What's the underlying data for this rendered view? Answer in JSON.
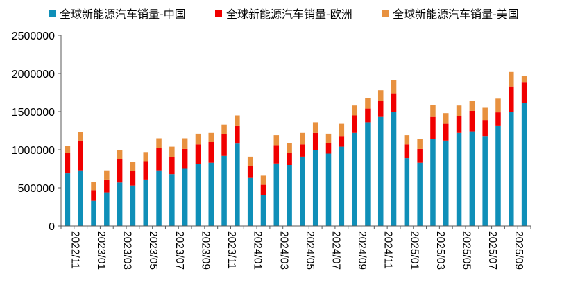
{
  "chart_data": {
    "type": "stacked-bar",
    "title": "",
    "xlabel": "",
    "ylabel": "",
    "ylim": [
      0,
      2500000
    ],
    "yticks": [
      "0",
      "500000",
      "1000000",
      "1500000",
      "2000000",
      "2500000"
    ],
    "grid": false,
    "legend_position": "top",
    "categories": [
      "2022/11",
      "2022/12",
      "2023/01",
      "2023/02",
      "2023/03",
      "2023/04",
      "2023/05",
      "2023/06",
      "2023/07",
      "2023/08",
      "2023/09",
      "2023/10",
      "2023/11",
      "2023/12",
      "2024/01",
      "2024/02",
      "2024/03",
      "2024/04",
      "2024/05",
      "2024/06",
      "2024/07",
      "2024/08",
      "2024/09",
      "2024/10",
      "2024/11",
      "2024/12",
      "2025/01",
      "2025/02",
      "2025/03",
      "2025/04",
      "2025/05",
      "2025/06",
      "2025/07",
      "2025/08",
      "2025/09",
      "2025/10"
    ],
    "x_tick_labels": [
      "2022/11",
      "2023/01",
      "2023/03",
      "2023/05",
      "2023/07",
      "2023/09",
      "2023/11",
      "2024/01",
      "2024/03",
      "2024/05",
      "2024/07",
      "2024/09",
      "2024/11",
      "2025/01",
      "2025/03",
      "2025/05",
      "2025/07",
      "2025/09"
    ],
    "series": [
      {
        "name": "全球新能源汽车销量-中国",
        "color": "#0f8fb8",
        "values": [
          690000,
          730000,
          330000,
          440000,
          570000,
          530000,
          610000,
          730000,
          680000,
          750000,
          810000,
          830000,
          920000,
          1080000,
          630000,
          400000,
          820000,
          800000,
          910000,
          1000000,
          950000,
          1040000,
          1220000,
          1360000,
          1430000,
          1500000,
          890000,
          830000,
          1140000,
          1120000,
          1220000,
          1240000,
          1180000,
          1310000,
          1500000,
          1610000
        ]
      },
      {
        "name": "全球新能源汽车销量-欧洲",
        "color": "#f00000",
        "values": [
          270000,
          390000,
          140000,
          170000,
          310000,
          190000,
          240000,
          290000,
          220000,
          260000,
          260000,
          270000,
          280000,
          230000,
          160000,
          140000,
          240000,
          160000,
          160000,
          220000,
          140000,
          140000,
          230000,
          180000,
          210000,
          240000,
          180000,
          180000,
          290000,
          220000,
          220000,
          270000,
          210000,
          180000,
          330000,
          270000
        ]
      },
      {
        "name": "全球新能源汽车销量-美国",
        "color": "#e8913f",
        "values": [
          90000,
          110000,
          110000,
          120000,
          120000,
          120000,
          120000,
          130000,
          140000,
          140000,
          140000,
          120000,
          130000,
          140000,
          120000,
          120000,
          130000,
          130000,
          150000,
          140000,
          120000,
          160000,
          130000,
          140000,
          140000,
          170000,
          120000,
          130000,
          160000,
          140000,
          140000,
          130000,
          160000,
          180000,
          190000,
          90000
        ]
      }
    ]
  }
}
